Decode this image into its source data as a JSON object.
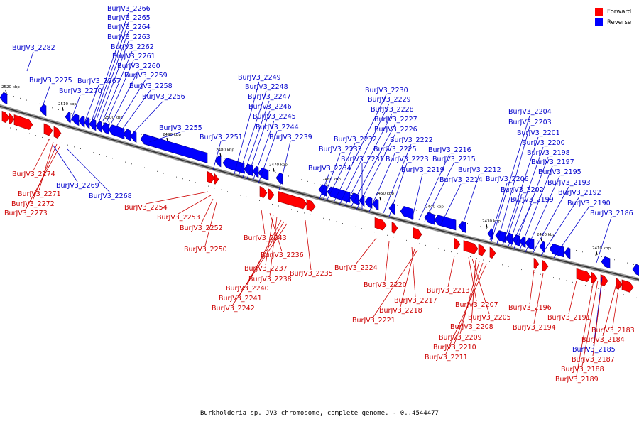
{
  "caption": "Burkholderia sp. JV3 chromosome, complete genome. - 0..4544477",
  "legend": [
    {
      "label": "Forward",
      "color": "#ff0000"
    },
    {
      "label": "Reverse",
      "color": "#0000ff"
    }
  ],
  "ticks": [
    "2520 kbp",
    "2510 kbp",
    "2500 kbp",
    "2490 kbp",
    "2480 kbp",
    "2470 kbp",
    "2460 kbp",
    "2450 kbp",
    "2440 kbp",
    "2430 kbp",
    "2420 kbp",
    "2410 kbp"
  ],
  "reverse_genes": [
    "BurJV3_2282",
    "BurJV3_2275",
    "BurJV3_2270",
    "BurJV3_2267",
    "BurJV3_2266",
    "BurJV3_2265",
    "BurJV3_2264",
    "BurJV3_2263",
    "BurJV3_2262",
    "BurJV3_2261",
    "BurJV3_2260",
    "BurJV3_2259",
    "BurJV3_2258",
    "BurJV3_2256",
    "BurJV3_2255",
    "BurJV3_2251",
    "BurJV3_2249",
    "BurJV3_2248",
    "BurJV3_2247",
    "BurJV3_2246",
    "BurJV3_2245",
    "BurJV3_2244",
    "BurJV3_2239",
    "BurJV3_2230",
    "BurJV3_2229",
    "BurJV3_2228",
    "BurJV3_2227",
    "BurJV3_2226",
    "BurJV3_2232",
    "BurJV3_2233",
    "BurJV3_2231",
    "BurJV3_2225",
    "BurJV3_2222",
    "BurJV3_2223",
    "BurJV3_2234",
    "BurJV3_2216",
    "BurJV3_2215",
    "BurJV3_2219",
    "BurJV3_2212",
    "BurJV3_2214",
    "BurJV3_2204",
    "BurJV3_2203",
    "BurJV3_2201",
    "BurJV3_2200",
    "BurJV3_2198",
    "BurJV3_2197",
    "BurJV3_2206",
    "BurJV3_2195",
    "BurJV3_2193",
    "BurJV3_2202",
    "BurJV3_2192",
    "BurJV3_2199",
    "BurJV3_2190",
    "BurJV3_2186",
    "BurJV3_2269",
    "BurJV3_2268",
    "BurJV3_2185"
  ],
  "forward_genes": [
    "BurJV3_2274",
    "BurJV3_2271",
    "BurJV3_2272",
    "BurJV3_2273",
    "BurJV3_2254",
    "BurJV3_2253",
    "BurJV3_2252",
    "BurJV3_2250",
    "BurJV3_2243",
    "BurJV3_2236",
    "BurJV3_2237",
    "BurJV3_2238",
    "BurJV3_2235",
    "BurJV3_2240",
    "BurJV3_2241",
    "BurJV3_2242",
    "BurJV3_2224",
    "BurJV3_2220",
    "BurJV3_2217",
    "BurJV3_2218",
    "BurJV3_2221",
    "BurJV3_2213",
    "BurJV3_2207",
    "BurJV3_2205",
    "BurJV3_2208",
    "BurJV3_2209",
    "BurJV3_2210",
    "BurJV3_2211",
    "BurJV3_2196",
    "BurJV3_2191",
    "BurJV3_2194",
    "BurJV3_2183",
    "BurJV3_2184",
    "BurJV3_2187",
    "BurJV3_2188",
    "BurJV3_2189"
  ]
}
